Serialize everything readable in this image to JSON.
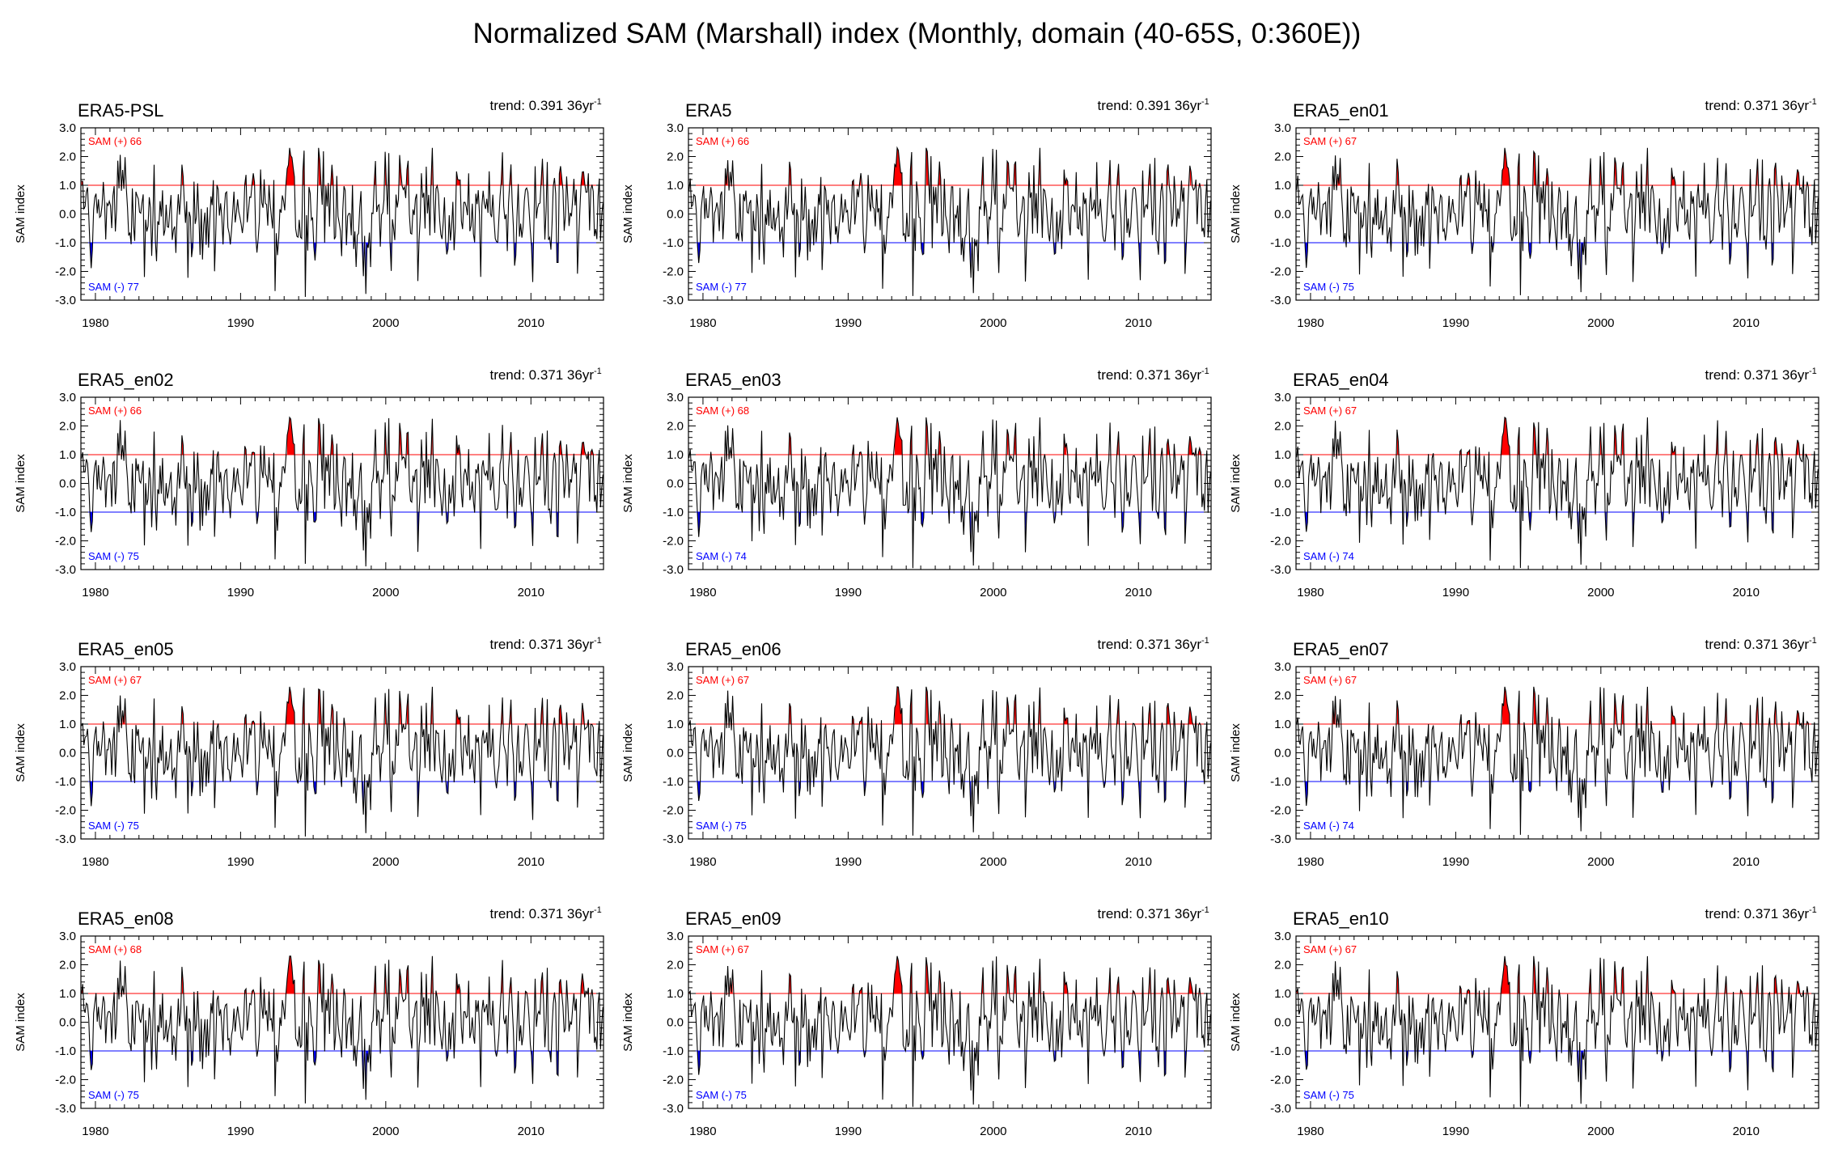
{
  "figure": {
    "title": "Normalized SAM (Marshall) index (Monthly, domain (40-65S, 0:360E))"
  },
  "colors": {
    "positive": "#ff0000",
    "negative": "#0000ff",
    "line": "#000000"
  },
  "chart_data": [
    {
      "type": "line",
      "title": "ERA5-PSL",
      "trend_label": "trend: 0.391 36yr",
      "trend_sup": "-1",
      "pos_label": "SAM (+) 66",
      "neg_label": "SAM (-) 77",
      "ylabel": "SAM index",
      "xlabel": "",
      "ylim": [
        -3,
        3
      ],
      "xlim": [
        1979,
        2015
      ],
      "threshold_pos": 1.0,
      "threshold_neg": -1.0,
      "xticks": [
        "1980",
        "1990",
        "2000",
        "2010"
      ],
      "yticks": [
        "3.0",
        "2.0",
        "1.0",
        "0.0",
        "-1.0",
        "-2.0",
        "-3.0"
      ],
      "seed": 11
    },
    {
      "type": "line",
      "title": "ERA5",
      "trend_label": "trend: 0.391 36yr",
      "trend_sup": "-1",
      "pos_label": "SAM (+) 66",
      "neg_label": "SAM (-) 77",
      "ylabel": "SAM index",
      "xlabel": "",
      "ylim": [
        -3,
        3
      ],
      "xlim": [
        1979,
        2015
      ],
      "threshold_pos": 1.0,
      "threshold_neg": -1.0,
      "xticks": [
        "1980",
        "1990",
        "2000",
        "2010"
      ],
      "yticks": [
        "3.0",
        "2.0",
        "1.0",
        "0.0",
        "-1.0",
        "-2.0",
        "-3.0"
      ],
      "seed": 12
    },
    {
      "type": "line",
      "title": "ERA5_en01",
      "trend_label": "trend: 0.371 36yr",
      "trend_sup": "-1",
      "pos_label": "SAM (+) 67",
      "neg_label": "SAM (-) 75",
      "ylabel": "SAM index",
      "xlabel": "",
      "ylim": [
        -3,
        3
      ],
      "xlim": [
        1979,
        2015
      ],
      "threshold_pos": 1.0,
      "threshold_neg": -1.0,
      "xticks": [
        "1980",
        "1990",
        "2000",
        "2010"
      ],
      "yticks": [
        "3.0",
        "2.0",
        "1.0",
        "0.0",
        "-1.0",
        "-2.0",
        "-3.0"
      ],
      "seed": 13
    },
    {
      "type": "line",
      "title": "ERA5_en02",
      "trend_label": "trend: 0.371 36yr",
      "trend_sup": "-1",
      "pos_label": "SAM (+) 66",
      "neg_label": "SAM (-) 75",
      "ylabel": "SAM index",
      "xlabel": "",
      "ylim": [
        -3,
        3
      ],
      "xlim": [
        1979,
        2015
      ],
      "threshold_pos": 1.0,
      "threshold_neg": -1.0,
      "xticks": [
        "1980",
        "1990",
        "2000",
        "2010"
      ],
      "yticks": [
        "3.0",
        "2.0",
        "1.0",
        "0.0",
        "-1.0",
        "-2.0",
        "-3.0"
      ],
      "seed": 14
    },
    {
      "type": "line",
      "title": "ERA5_en03",
      "trend_label": "trend: 0.371 36yr",
      "trend_sup": "-1",
      "pos_label": "SAM (+) 68",
      "neg_label": "SAM (-) 74",
      "ylabel": "SAM index",
      "xlabel": "",
      "ylim": [
        -3,
        3
      ],
      "xlim": [
        1979,
        2015
      ],
      "threshold_pos": 1.0,
      "threshold_neg": -1.0,
      "xticks": [
        "1980",
        "1990",
        "2000",
        "2010"
      ],
      "yticks": [
        "3.0",
        "2.0",
        "1.0",
        "0.0",
        "-1.0",
        "-2.0",
        "-3.0"
      ],
      "seed": 15
    },
    {
      "type": "line",
      "title": "ERA5_en04",
      "trend_label": "trend: 0.371 36yr",
      "trend_sup": "-1",
      "pos_label": "SAM (+) 67",
      "neg_label": "SAM (-) 74",
      "ylabel": "SAM index",
      "xlabel": "",
      "ylim": [
        -3,
        3
      ],
      "xlim": [
        1979,
        2015
      ],
      "threshold_pos": 1.0,
      "threshold_neg": -1.0,
      "xticks": [
        "1980",
        "1990",
        "2000",
        "2010"
      ],
      "yticks": [
        "3.0",
        "2.0",
        "1.0",
        "0.0",
        "-1.0",
        "-2.0",
        "-3.0"
      ],
      "seed": 16
    },
    {
      "type": "line",
      "title": "ERA5_en05",
      "trend_label": "trend: 0.371 36yr",
      "trend_sup": "-1",
      "pos_label": "SAM (+) 67",
      "neg_label": "SAM (-) 75",
      "ylabel": "SAM index",
      "xlabel": "",
      "ylim": [
        -3,
        3
      ],
      "xlim": [
        1979,
        2015
      ],
      "threshold_pos": 1.0,
      "threshold_neg": -1.0,
      "xticks": [
        "1980",
        "1990",
        "2000",
        "2010"
      ],
      "yticks": [
        "3.0",
        "2.0",
        "1.0",
        "0.0",
        "-1.0",
        "-2.0",
        "-3.0"
      ],
      "seed": 17
    },
    {
      "type": "line",
      "title": "ERA5_en06",
      "trend_label": "trend: 0.371 36yr",
      "trend_sup": "-1",
      "pos_label": "SAM (+) 67",
      "neg_label": "SAM (-) 75",
      "ylabel": "SAM index",
      "xlabel": "",
      "ylim": [
        -3,
        3
      ],
      "xlim": [
        1979,
        2015
      ],
      "threshold_pos": 1.0,
      "threshold_neg": -1.0,
      "xticks": [
        "1980",
        "1990",
        "2000",
        "2010"
      ],
      "yticks": [
        "3.0",
        "2.0",
        "1.0",
        "0.0",
        "-1.0",
        "-2.0",
        "-3.0"
      ],
      "seed": 18
    },
    {
      "type": "line",
      "title": "ERA5_en07",
      "trend_label": "trend: 0.371 36yr",
      "trend_sup": "-1",
      "pos_label": "SAM (+) 67",
      "neg_label": "SAM (-) 74",
      "ylabel": "SAM index",
      "xlabel": "",
      "ylim": [
        -3,
        3
      ],
      "xlim": [
        1979,
        2015
      ],
      "threshold_pos": 1.0,
      "threshold_neg": -1.0,
      "xticks": [
        "1980",
        "1990",
        "2000",
        "2010"
      ],
      "yticks": [
        "3.0",
        "2.0",
        "1.0",
        "0.0",
        "-1.0",
        "-2.0",
        "-3.0"
      ],
      "seed": 19
    },
    {
      "type": "line",
      "title": "ERA5_en08",
      "trend_label": "trend: 0.371 36yr",
      "trend_sup": "-1",
      "pos_label": "SAM (+) 68",
      "neg_label": "SAM (-) 75",
      "ylabel": "SAM index",
      "xlabel": "",
      "ylim": [
        -3,
        3
      ],
      "xlim": [
        1979,
        2015
      ],
      "threshold_pos": 1.0,
      "threshold_neg": -1.0,
      "xticks": [
        "1980",
        "1990",
        "2000",
        "2010"
      ],
      "yticks": [
        "3.0",
        "2.0",
        "1.0",
        "0.0",
        "-1.0",
        "-2.0",
        "-3.0"
      ],
      "seed": 20
    },
    {
      "type": "line",
      "title": "ERA5_en09",
      "trend_label": "trend: 0.371 36yr",
      "trend_sup": "-1",
      "pos_label": "SAM (+) 67",
      "neg_label": "SAM (-) 75",
      "ylabel": "SAM index",
      "xlabel": "",
      "ylim": [
        -3,
        3
      ],
      "xlim": [
        1979,
        2015
      ],
      "threshold_pos": 1.0,
      "threshold_neg": -1.0,
      "xticks": [
        "1980",
        "1990",
        "2000",
        "2010"
      ],
      "yticks": [
        "3.0",
        "2.0",
        "1.0",
        "0.0",
        "-1.0",
        "-2.0",
        "-3.0"
      ],
      "seed": 21
    },
    {
      "type": "line",
      "title": "ERA5_en10",
      "trend_label": "trend: 0.371 36yr",
      "trend_sup": "-1",
      "pos_label": "SAM (+) 67",
      "neg_label": "SAM (-) 75",
      "ylabel": "SAM index",
      "xlabel": "",
      "ylim": [
        -3,
        3
      ],
      "xlim": [
        1979,
        2015
      ],
      "threshold_pos": 1.0,
      "threshold_neg": -1.0,
      "xticks": [
        "1980",
        "1990",
        "2000",
        "2010"
      ],
      "yticks": [
        "3.0",
        "2.0",
        "1.0",
        "0.0",
        "-1.0",
        "-2.0",
        "-3.0"
      ],
      "seed": 22
    }
  ]
}
